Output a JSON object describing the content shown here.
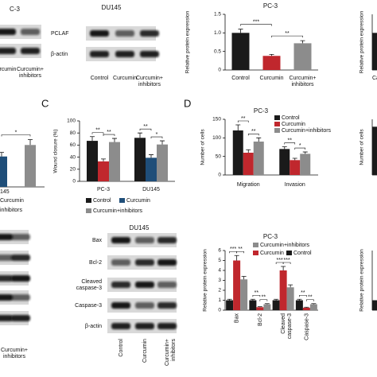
{
  "figure": {
    "panel_labels": [
      "C",
      "D"
    ],
    "blots": [
      {
        "title": "C-3",
        "lanes": [
          "urcumin",
          "Curcumin+ inhibitors"
        ]
      },
      {
        "title": "DU145",
        "rows": [
          "PCLAF",
          "β-actin"
        ],
        "lanes": [
          "Control",
          "Curcumin",
          "Curcumin+ inhibitors"
        ]
      },
      {
        "lanes": [
          "Curcumin+ inhibitors"
        ]
      },
      {
        "title": "DU145",
        "rows": [
          "Bax",
          "Bcl-2",
          "Cleaved caspase-3",
          "Caspase-3",
          "β-actin"
        ],
        "lanes": [
          "Control",
          "Curcumin",
          "Curcumin+ inhibitors"
        ]
      }
    ]
  },
  "chart_data": [
    {
      "type": "bar",
      "title": "PC-3",
      "ylabel": "Relative protein expression",
      "categories": [
        "Control",
        "Curcumin",
        "Curcumin+ inhibitors"
      ],
      "values": [
        1.0,
        0.38,
        0.72
      ],
      "errors": [
        0.1,
        0.04,
        0.07
      ],
      "colors": [
        "#1a1a1a",
        "#c0272d",
        "#8c8c8c"
      ],
      "ylim": [
        0,
        1.5
      ],
      "yticks": [
        0,
        0.5,
        {
          "value": 1,
          "label": "1.0"
        },
        1.5
      ],
      "annotations": [
        "***",
        "**"
      ]
    },
    {
      "type": "bar",
      "ylabel": "Relative protein expression",
      "categories": [
        "Ca"
      ],
      "values": [
        1.0
      ],
      "colors": [
        "#1a1a1a"
      ],
      "ylim": [
        0,
        1.5
      ]
    },
    {
      "type": "bar",
      "categories": [
        null,
        null
      ],
      "values": [
        45,
        62
      ],
      "errors": [
        6,
        8
      ],
      "colors": [
        "#1f4e79",
        "#8c8c8c"
      ],
      "ylim": [
        0,
        100
      ],
      "annotations": [
        "*"
      ],
      "texts": [
        "145",
        "Curcumin",
        "inhibitors"
      ]
    },
    {
      "type": "grouped_bar",
      "ylabel": "Wound closure (%)",
      "categories": [
        "PC-3",
        "DU145"
      ],
      "series": [
        {
          "name": "Control",
          "color": "#1a1a1a",
          "values": [
            67,
            72
          ],
          "errors": [
            7,
            8
          ]
        },
        {
          "name": "Curcumin",
          "color": "#1f4e79",
          "colors": [
            "#c0272d",
            "#1f4e79"
          ],
          "values": [
            33,
            39
          ],
          "errors": [
            4,
            5
          ]
        },
        {
          "name": "Curcumin+inhibitors",
          "color": "#8c8c8c",
          "values": [
            65,
            61
          ],
          "errors": [
            6,
            6
          ]
        }
      ],
      "ylim": [
        0,
        100
      ],
      "yticks": [
        0,
        20,
        40,
        60,
        80,
        100
      ],
      "annotations": [
        "**",
        "**",
        "**",
        "*"
      ]
    },
    {
      "type": "grouped_bar",
      "title": "PC-3",
      "ylabel": "Number of cells",
      "categories": [
        "Migration",
        "Invasion"
      ],
      "series": [
        {
          "name": "Control",
          "color": "#1a1a1a",
          "values": [
            120,
            70
          ],
          "errors": [
            15,
            6
          ]
        },
        {
          "name": "Curcumin",
          "color": "#c0272d",
          "values": [
            60,
            40
          ],
          "errors": [
            8,
            5
          ]
        },
        {
          "name": "Curcumin+inhibitors",
          "color": "#8c8c8c",
          "values": [
            90,
            57
          ],
          "errors": [
            10,
            5
          ]
        }
      ],
      "ylim": [
        0,
        150
      ],
      "yticks": [
        0,
        50,
        100,
        150
      ],
      "annotations": [
        "**",
        "**",
        "**",
        "*"
      ],
      "legend": "upper right"
    },
    {
      "type": "bar",
      "ylabel": "Number of cells",
      "categories": [
        null
      ],
      "values": [
        130
      ],
      "colors": [
        "#1a1a1a"
      ],
      "ylim": [
        0,
        150
      ]
    },
    {
      "type": "grouped_bar",
      "title": "PC-3",
      "ylabel": "Relative protein expression",
      "categories": [
        "Bax",
        "Bcl-2",
        "Cleaved caspase-3",
        "Caspase-3"
      ],
      "series": [
        {
          "name": "Control",
          "color": "#1a1a1a",
          "values": [
            1,
            1,
            1,
            1
          ],
          "errors": [
            0.1,
            0.1,
            0.1,
            0.1
          ]
        },
        {
          "name": "Curcumin",
          "color": "#c0272d",
          "values": [
            5.0,
            0.3,
            4.0,
            0.25
          ],
          "errors": [
            0.5,
            0.05,
            0.4,
            0.05
          ]
        },
        {
          "name": "Curcumin+inhibitors",
          "color": "#8c8c8c",
          "values": [
            3.1,
            0.6,
            2.3,
            0.6
          ],
          "errors": [
            0.3,
            0.06,
            0.25,
            0.06
          ]
        }
      ],
      "ylim": [
        0,
        6
      ],
      "yticks": [
        0,
        1,
        2,
        3,
        4,
        5,
        6
      ],
      "annotations": [
        "***",
        "**",
        "**",
        "**",
        "***",
        "***",
        "**",
        "**"
      ],
      "legend": "upper center"
    },
    {
      "type": "bar",
      "ylabel": "Relative protein expression",
      "categories": [
        null
      ],
      "values": [
        1
      ],
      "colors": [
        "#1a1a1a"
      ],
      "ylim": [
        0,
        6
      ]
    }
  ]
}
